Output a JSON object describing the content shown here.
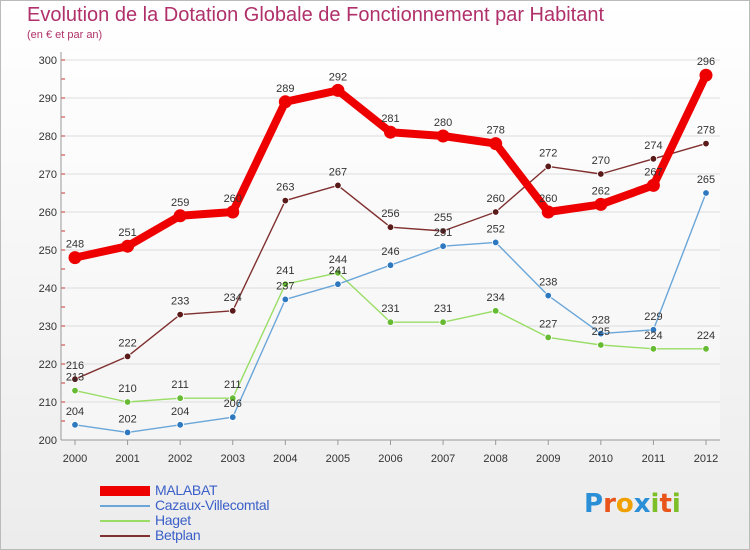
{
  "title": "Evolution de la Dotation Globale de Fonctionnement par Habitant",
  "subtitle": "(en € et par an)",
  "logo": {
    "text": "Proxiti",
    "letters": [
      "P",
      "r",
      "o",
      "x",
      "i",
      "t",
      "i"
    ],
    "colors": [
      "#2b8fd8",
      "#e8541a",
      "#f0a000",
      "#2b8fd8",
      "#7cbf26",
      "#e8541a",
      "#7cbf26"
    ]
  },
  "chart_data": {
    "type": "line",
    "title": "Evolution de la Dotation Globale de Fonctionnement par Habitant",
    "subtitle": "(en € et par an)",
    "x": [
      "2000",
      "2001",
      "2002",
      "2003",
      "2004",
      "2005",
      "2006",
      "2007",
      "2008",
      "2009",
      "2010",
      "2011",
      "2012"
    ],
    "ylim": [
      200,
      300
    ],
    "yticks": [
      200,
      210,
      220,
      230,
      240,
      250,
      260,
      270,
      280,
      290,
      300
    ],
    "grid": true,
    "legend_position": "bottom-left",
    "series": [
      {
        "name": "MALABAT",
        "color": "#ee0000",
        "values": [
          248,
          251,
          259,
          260,
          289,
          292,
          281,
          280,
          278,
          260,
          262,
          267,
          296
        ],
        "labels": [
          "248",
          "251",
          "259",
          "260",
          "289",
          "292",
          "281",
          "280",
          "278",
          "260",
          "262",
          "267",
          "296"
        ]
      },
      {
        "name": "Cazaux-Villecomtal",
        "color": "#6aa6d8",
        "values": [
          204,
          202,
          204,
          206,
          237,
          241,
          246,
          251,
          252,
          238,
          228,
          229,
          265
        ],
        "labels": [
          "204",
          "202",
          "204",
          "206",
          "237",
          "241",
          "246",
          "251",
          "252",
          "238",
          "228",
          "229",
          "265"
        ]
      },
      {
        "name": "Haget",
        "color": "#99dd66",
        "values": [
          213,
          210,
          211,
          211,
          241,
          244,
          231,
          231,
          234,
          227,
          225,
          224,
          224
        ],
        "labels": [
          "213",
          "210",
          "211",
          "211",
          "241",
          "244",
          "231",
          "231",
          "234",
          "227",
          "225",
          "224",
          "224"
        ]
      },
      {
        "name": "Betplan",
        "color": "#803030",
        "values": [
          216,
          222,
          233,
          234,
          263,
          267,
          256,
          255,
          260,
          272,
          270,
          274,
          278
        ],
        "labels": [
          "216",
          "222",
          "233",
          "234",
          "263",
          "267",
          "256",
          "255",
          "260",
          "272",
          "270",
          "274",
          "278"
        ]
      }
    ]
  }
}
